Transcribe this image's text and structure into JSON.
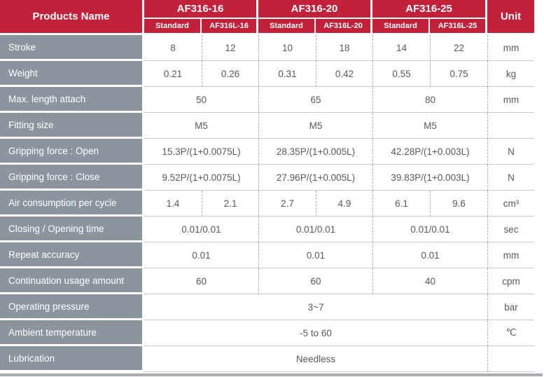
{
  "colors": {
    "header_red": "#C3203A",
    "label_gray": "#8C959D",
    "data_text": "#58595B",
    "row_border": "#C9CBCD",
    "dashed_border": "#ACAEB0",
    "bottom_bar": "#A6ACB0"
  },
  "table": {
    "header": {
      "products_name": "Products Name",
      "groups": [
        {
          "label": "AF316-16",
          "sub": [
            "Standard",
            "AF316L-16"
          ]
        },
        {
          "label": "AF316-20",
          "sub": [
            "Standard",
            "AF316L-20"
          ]
        },
        {
          "label": "AF316-25",
          "sub": [
            "Standard",
            "AF316L-25"
          ]
        }
      ],
      "unit_label": "Unit"
    },
    "rows": [
      {
        "label": "Stroke",
        "cells": [
          {
            "text": "8",
            "span": 1
          },
          {
            "text": "12",
            "span": 1
          },
          {
            "text": "10",
            "span": 1
          },
          {
            "text": "18",
            "span": 1
          },
          {
            "text": "14",
            "span": 1
          },
          {
            "text": "22",
            "span": 1
          }
        ],
        "unit": "mm"
      },
      {
        "label": "Weight",
        "cells": [
          {
            "text": "0.21",
            "span": 1
          },
          {
            "text": "0.26",
            "span": 1
          },
          {
            "text": "0.31",
            "span": 1
          },
          {
            "text": "0.42",
            "span": 1
          },
          {
            "text": "0.55",
            "span": 1
          },
          {
            "text": "0.75",
            "span": 1
          }
        ],
        "unit": "kg"
      },
      {
        "label": "Max. length attach",
        "cells": [
          {
            "text": "50",
            "span": 2
          },
          {
            "text": "65",
            "span": 2
          },
          {
            "text": "80",
            "span": 2
          }
        ],
        "unit": "mm"
      },
      {
        "label": "Fitting size",
        "cells": [
          {
            "text": "M5",
            "span": 2
          },
          {
            "text": "M5",
            "span": 2
          },
          {
            "text": "M5",
            "span": 2
          }
        ],
        "unit": ""
      },
      {
        "label": "Gripping force : Open",
        "cells": [
          {
            "text": "15.3P/(1+0.0075L)",
            "span": 2
          },
          {
            "text": "28.35P/(1+0.005L)",
            "span": 2
          },
          {
            "text": "42.28P/(1+0.003L)",
            "span": 2
          }
        ],
        "unit": "N"
      },
      {
        "label": "Gripping force : Close",
        "cells": [
          {
            "text": "9.52P/(1+0.0075L)",
            "span": 2
          },
          {
            "text": "27.96P/(1+0.005L)",
            "span": 2
          },
          {
            "text": "39.83P/(1+0.003L)",
            "span": 2
          }
        ],
        "unit": "N"
      },
      {
        "label": "Air consumption per cycle",
        "cells": [
          {
            "text": "1.4",
            "span": 1
          },
          {
            "text": "2.1",
            "span": 1
          },
          {
            "text": "2.7",
            "span": 1
          },
          {
            "text": "4.9",
            "span": 1
          },
          {
            "text": "6.1",
            "span": 1
          },
          {
            "text": "9.6",
            "span": 1
          }
        ],
        "unit": "cm³"
      },
      {
        "label": "Closing / Opening time",
        "cells": [
          {
            "text": "0.01/0.01",
            "span": 2
          },
          {
            "text": "0.01/0.01",
            "span": 2
          },
          {
            "text": "0.01/0.01",
            "span": 2
          }
        ],
        "unit": "sec"
      },
      {
        "label": "Repeat accuracy",
        "cells": [
          {
            "text": "0.01",
            "span": 2
          },
          {
            "text": "0.01",
            "span": 2
          },
          {
            "text": "0.01",
            "span": 2
          }
        ],
        "unit": "mm"
      },
      {
        "label": "Continuation usage amount",
        "cells": [
          {
            "text": "60",
            "span": 2
          },
          {
            "text": "60",
            "span": 2
          },
          {
            "text": "40",
            "span": 2
          }
        ],
        "unit": "cpm"
      },
      {
        "label": "Operating pressure",
        "cells": [
          {
            "text": "3~7",
            "span": 6
          }
        ],
        "unit": "bar"
      },
      {
        "label": "Ambient temperature",
        "cells": [
          {
            "text": "-5 to 60",
            "span": 6
          }
        ],
        "unit": "℃"
      },
      {
        "label": "Lubrication",
        "cells": [
          {
            "text": "Needless",
            "span": 6
          }
        ],
        "unit": ""
      }
    ]
  }
}
